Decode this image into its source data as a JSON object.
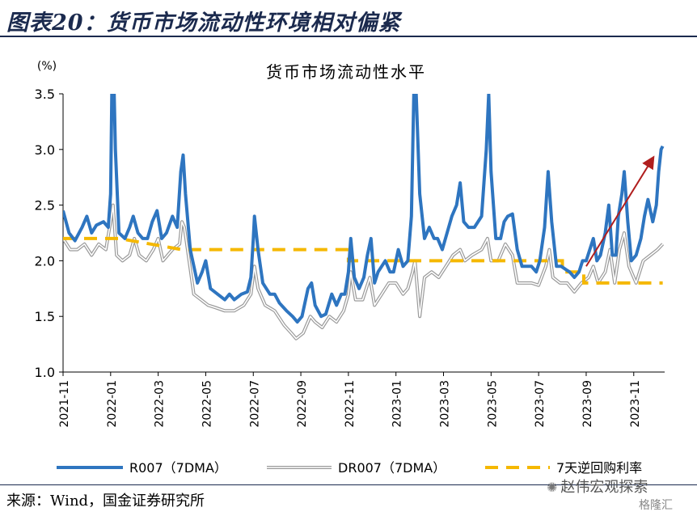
{
  "figure": {
    "title": "图表20：货币市场流动性环境相对偏紧",
    "source": "来源：Wind，国金证券研究所",
    "watermark": "赵伟宏观探索",
    "brand": "格隆汇"
  },
  "chart_data": {
    "type": "line",
    "title": "货币市场流动性水平",
    "unit_label": "(%)",
    "ylim": [
      1.0,
      3.5
    ],
    "yticks": [
      "1.0",
      "1.5",
      "2.0",
      "2.5",
      "3.0",
      "3.5"
    ],
    "xtick_labels": [
      "2021-11",
      "2022-01",
      "2022-03",
      "2022-05",
      "2022-07",
      "2022-09",
      "2022-11",
      "2023-01",
      "2023-03",
      "2023-05",
      "2023-07",
      "2023-09",
      "2023-11"
    ],
    "x_range": [
      0,
      25.3
    ],
    "grid": false,
    "legend_position": "bottom",
    "colors": {
      "r007": "#2e75c0",
      "dr007": "#9a9a9a",
      "repo": "#f5b800",
      "arrow": "#b01e1e"
    },
    "series": [
      {
        "name": "R007（7DMA）",
        "style": "solid-thick",
        "points": [
          [
            0,
            2.45
          ],
          [
            0.25,
            2.25
          ],
          [
            0.5,
            2.18
          ],
          [
            0.8,
            2.3
          ],
          [
            1.0,
            2.4
          ],
          [
            1.2,
            2.25
          ],
          [
            1.4,
            2.32
          ],
          [
            1.7,
            2.35
          ],
          [
            1.9,
            2.3
          ],
          [
            2.0,
            2.6
          ],
          [
            2.05,
            3.5
          ],
          [
            2.15,
            3.5
          ],
          [
            2.2,
            3.0
          ],
          [
            2.35,
            2.25
          ],
          [
            2.6,
            2.2
          ],
          [
            2.8,
            2.3
          ],
          [
            2.95,
            2.4
          ],
          [
            3.15,
            2.25
          ],
          [
            3.35,
            2.2
          ],
          [
            3.55,
            2.2
          ],
          [
            3.75,
            2.35
          ],
          [
            3.95,
            2.45
          ],
          [
            4.15,
            2.2
          ],
          [
            4.35,
            2.25
          ],
          [
            4.6,
            2.4
          ],
          [
            4.8,
            2.3
          ],
          [
            4.95,
            2.8
          ],
          [
            5.05,
            2.95
          ],
          [
            5.15,
            2.6
          ],
          [
            5.35,
            2.1
          ],
          [
            5.65,
            1.8
          ],
          [
            5.85,
            1.9
          ],
          [
            6.0,
            2.0
          ],
          [
            6.2,
            1.75
          ],
          [
            6.5,
            1.7
          ],
          [
            6.8,
            1.65
          ],
          [
            7.0,
            1.7
          ],
          [
            7.2,
            1.65
          ],
          [
            7.5,
            1.7
          ],
          [
            7.75,
            1.72
          ],
          [
            7.9,
            1.85
          ],
          [
            8.0,
            2.2
          ],
          [
            8.05,
            2.4
          ],
          [
            8.2,
            2.1
          ],
          [
            8.4,
            1.8
          ],
          [
            8.7,
            1.7
          ],
          [
            8.9,
            1.7
          ],
          [
            9.1,
            1.62
          ],
          [
            9.4,
            1.55
          ],
          [
            9.65,
            1.5
          ],
          [
            9.85,
            1.45
          ],
          [
            10.05,
            1.5
          ],
          [
            10.3,
            1.75
          ],
          [
            10.45,
            1.8
          ],
          [
            10.6,
            1.6
          ],
          [
            10.85,
            1.5
          ],
          [
            11.05,
            1.52
          ],
          [
            11.3,
            1.7
          ],
          [
            11.5,
            1.6
          ],
          [
            11.7,
            1.7
          ],
          [
            11.85,
            1.7
          ],
          [
            12.0,
            1.9
          ],
          [
            12.1,
            2.2
          ],
          [
            12.25,
            1.85
          ],
          [
            12.45,
            1.75
          ],
          [
            12.65,
            1.85
          ],
          [
            12.8,
            2.05
          ],
          [
            12.95,
            2.2
          ],
          [
            13.1,
            1.8
          ],
          [
            13.25,
            1.9
          ],
          [
            13.55,
            2.0
          ],
          [
            13.75,
            1.9
          ],
          [
            13.9,
            1.9
          ],
          [
            14.1,
            2.1
          ],
          [
            14.3,
            1.95
          ],
          [
            14.5,
            2.0
          ],
          [
            14.65,
            2.4
          ],
          [
            14.75,
            3.5
          ],
          [
            14.85,
            3.5
          ],
          [
            15.0,
            2.6
          ],
          [
            15.2,
            2.2
          ],
          [
            15.4,
            2.3
          ],
          [
            15.6,
            2.2
          ],
          [
            15.75,
            2.2
          ],
          [
            15.95,
            2.1
          ],
          [
            16.15,
            2.25
          ],
          [
            16.35,
            2.4
          ],
          [
            16.55,
            2.5
          ],
          [
            16.7,
            2.7
          ],
          [
            16.85,
            2.35
          ],
          [
            17.05,
            2.3
          ],
          [
            17.3,
            2.3
          ],
          [
            17.6,
            2.4
          ],
          [
            17.8,
            3.0
          ],
          [
            17.9,
            3.5
          ],
          [
            18.0,
            2.8
          ],
          [
            18.2,
            2.2
          ],
          [
            18.4,
            2.2
          ],
          [
            18.55,
            2.35
          ],
          [
            18.7,
            2.4
          ],
          [
            18.9,
            2.42
          ],
          [
            19.1,
            2.1
          ],
          [
            19.3,
            1.95
          ],
          [
            19.5,
            1.95
          ],
          [
            19.7,
            1.95
          ],
          [
            19.9,
            1.9
          ],
          [
            20.05,
            2.0
          ],
          [
            20.25,
            2.3
          ],
          [
            20.4,
            2.8
          ],
          [
            20.55,
            2.35
          ],
          [
            20.75,
            1.95
          ],
          [
            20.95,
            1.95
          ],
          [
            21.15,
            1.92
          ],
          [
            21.3,
            1.9
          ],
          [
            21.5,
            1.85
          ],
          [
            21.7,
            1.9
          ],
          [
            21.85,
            2.0
          ],
          [
            22.0,
            2.0
          ],
          [
            22.15,
            2.1
          ],
          [
            22.3,
            2.2
          ],
          [
            22.45,
            2.0
          ],
          [
            22.6,
            2.05
          ],
          [
            22.8,
            2.25
          ],
          [
            22.95,
            2.5
          ],
          [
            23.1,
            2.05
          ],
          [
            23.25,
            2.05
          ],
          [
            23.35,
            2.4
          ],
          [
            23.5,
            2.6
          ],
          [
            23.6,
            2.8
          ],
          [
            23.75,
            2.35
          ],
          [
            23.9,
            2.0
          ],
          [
            24.1,
            2.05
          ],
          [
            24.3,
            2.2
          ],
          [
            24.45,
            2.4
          ],
          [
            24.6,
            2.55
          ],
          [
            24.8,
            2.35
          ],
          [
            24.95,
            2.5
          ],
          [
            25.05,
            2.8
          ],
          [
            25.15,
            3.0
          ],
          [
            25.22,
            3.03
          ]
        ]
      },
      {
        "name": "DR007（7DMA）",
        "style": "double-thin",
        "points": [
          [
            0,
            2.2
          ],
          [
            0.3,
            2.1
          ],
          [
            0.6,
            2.1
          ],
          [
            0.9,
            2.15
          ],
          [
            1.2,
            2.05
          ],
          [
            1.5,
            2.15
          ],
          [
            1.8,
            2.1
          ],
          [
            2.0,
            2.35
          ],
          [
            2.1,
            2.5
          ],
          [
            2.25,
            2.05
          ],
          [
            2.5,
            2.0
          ],
          [
            2.8,
            2.05
          ],
          [
            3.0,
            2.2
          ],
          [
            3.2,
            2.05
          ],
          [
            3.5,
            2.0
          ],
          [
            3.8,
            2.1
          ],
          [
            4.0,
            2.2
          ],
          [
            4.2,
            2.0
          ],
          [
            4.6,
            2.1
          ],
          [
            4.9,
            2.15
          ],
          [
            5.0,
            2.35
          ],
          [
            5.1,
            2.3
          ],
          [
            5.3,
            2.0
          ],
          [
            5.5,
            1.7
          ],
          [
            5.8,
            1.65
          ],
          [
            6.1,
            1.6
          ],
          [
            6.4,
            1.58
          ],
          [
            6.8,
            1.55
          ],
          [
            7.2,
            1.55
          ],
          [
            7.6,
            1.6
          ],
          [
            7.9,
            1.7
          ],
          [
            8.05,
            1.95
          ],
          [
            8.2,
            1.75
          ],
          [
            8.5,
            1.6
          ],
          [
            8.9,
            1.55
          ],
          [
            9.3,
            1.42
          ],
          [
            9.6,
            1.35
          ],
          [
            9.8,
            1.3
          ],
          [
            10.1,
            1.35
          ],
          [
            10.4,
            1.5
          ],
          [
            10.6,
            1.45
          ],
          [
            10.9,
            1.4
          ],
          [
            11.2,
            1.5
          ],
          [
            11.5,
            1.45
          ],
          [
            11.8,
            1.55
          ],
          [
            12.0,
            1.7
          ],
          [
            12.1,
            1.9
          ],
          [
            12.3,
            1.65
          ],
          [
            12.6,
            1.65
          ],
          [
            12.9,
            1.85
          ],
          [
            13.1,
            1.6
          ],
          [
            13.4,
            1.7
          ],
          [
            13.7,
            1.8
          ],
          [
            14.0,
            1.8
          ],
          [
            14.3,
            1.7
          ],
          [
            14.5,
            1.75
          ],
          [
            14.7,
            1.9
          ],
          [
            14.8,
            2.0
          ],
          [
            15.0,
            1.5
          ],
          [
            15.2,
            1.85
          ],
          [
            15.5,
            1.9
          ],
          [
            15.8,
            1.85
          ],
          [
            16.1,
            1.95
          ],
          [
            16.4,
            2.05
          ],
          [
            16.7,
            2.1
          ],
          [
            16.9,
            2.0
          ],
          [
            17.2,
            2.05
          ],
          [
            17.6,
            2.1
          ],
          [
            17.85,
            2.2
          ],
          [
            18.0,
            2.0
          ],
          [
            18.3,
            2.0
          ],
          [
            18.6,
            2.15
          ],
          [
            18.9,
            2.05
          ],
          [
            19.1,
            1.8
          ],
          [
            19.4,
            1.8
          ],
          [
            19.7,
            1.8
          ],
          [
            20.0,
            1.78
          ],
          [
            20.3,
            1.95
          ],
          [
            20.45,
            2.1
          ],
          [
            20.6,
            1.85
          ],
          [
            20.9,
            1.8
          ],
          [
            21.2,
            1.8
          ],
          [
            21.5,
            1.72
          ],
          [
            21.8,
            1.8
          ],
          [
            22.1,
            1.85
          ],
          [
            22.3,
            1.95
          ],
          [
            22.5,
            1.8
          ],
          [
            22.8,
            1.9
          ],
          [
            23.0,
            2.1
          ],
          [
            23.2,
            1.8
          ],
          [
            23.4,
            2.1
          ],
          [
            23.6,
            2.25
          ],
          [
            23.8,
            1.95
          ],
          [
            24.1,
            1.8
          ],
          [
            24.4,
            2.0
          ],
          [
            24.7,
            2.05
          ],
          [
            25.0,
            2.1
          ],
          [
            25.22,
            2.15
          ]
        ]
      },
      {
        "name": "7天逆回购利率",
        "style": "dashed",
        "points": [
          [
            0,
            2.2
          ],
          [
            2.35,
            2.2
          ],
          [
            2.35,
            2.2
          ],
          [
            5.0,
            2.1
          ],
          [
            5.0,
            2.1
          ],
          [
            12.0,
            2.1
          ],
          [
            12.0,
            2.0
          ],
          [
            21.0,
            2.0
          ],
          [
            21.0,
            1.9
          ],
          [
            21.9,
            1.9
          ],
          [
            21.9,
            1.8
          ],
          [
            25.22,
            1.8
          ]
        ]
      }
    ],
    "annotations": [
      {
        "type": "arrow",
        "from": [
          22.0,
          1.95
        ],
        "to": [
          24.8,
          2.92
        ]
      }
    ]
  }
}
